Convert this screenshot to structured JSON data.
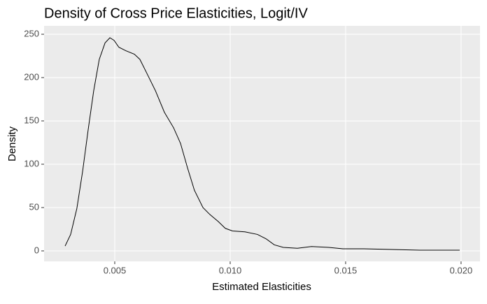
{
  "chart_data": {
    "type": "line",
    "title": "Density of Cross Price Elasticities, Logit/IV",
    "x_label": "Estimated Elasticities",
    "y_label": "Density",
    "x": [
      0.00285,
      0.00309,
      0.00336,
      0.00361,
      0.00385,
      0.00409,
      0.00433,
      0.00458,
      0.00479,
      0.00497,
      0.00518,
      0.00548,
      0.00585,
      0.00609,
      0.00639,
      0.00676,
      0.00715,
      0.00755,
      0.00785,
      0.00815,
      0.00845,
      0.00882,
      0.00912,
      0.00948,
      0.00979,
      0.0101,
      0.01064,
      0.01118,
      0.01155,
      0.01191,
      0.0123,
      0.01291,
      0.01352,
      0.01427,
      0.01488,
      0.01579,
      0.017,
      0.01821,
      0.01942,
      0.01994
    ],
    "values": [
      5.6,
      19,
      49,
      92,
      140,
      185,
      221,
      240,
      246,
      243,
      235,
      231,
      227,
      221,
      205,
      185,
      160,
      142,
      124,
      96,
      70,
      50,
      42,
      34,
      26,
      23,
      22,
      19,
      14,
      7,
      4,
      3,
      5,
      4,
      2.4,
      2.4,
      1.6,
      0.8,
      0.8,
      0.8
    ],
    "color": "#000000",
    "xlim": [
      0.00194,
      0.02082
    ],
    "xticks": [
      0.005,
      {
        "value": 0.01,
        "label": "0.010"
      },
      0.015,
      {
        "value": 0.02,
        "label": "0.020"
      }
    ],
    "ylim": [
      -12.1,
      259.7
    ],
    "yticks": [
      0,
      50,
      100,
      150,
      200,
      250
    ],
    "grid": true
  }
}
